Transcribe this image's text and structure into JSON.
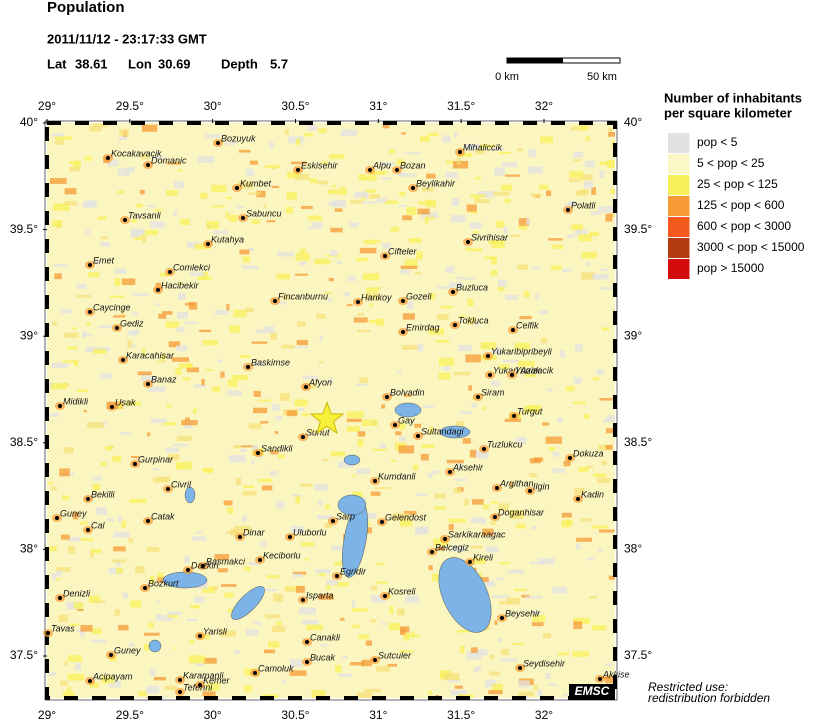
{
  "header": {
    "title": "Population",
    "datetime": "2011/11/12 - 23:17:33 GMT",
    "lat": {
      "label": "Lat",
      "value": 38.61
    },
    "lon": {
      "label": "Lon",
      "value": 30.69
    },
    "depth": {
      "label": "Depth",
      "value": 5.7
    }
  },
  "scale": {
    "labels": [
      "0 km",
      "50 km"
    ]
  },
  "axes": {
    "lon_ticks": [
      {
        "value": 29,
        "label": "29°"
      },
      {
        "value": 29.5,
        "label": "29.5°"
      },
      {
        "value": 30,
        "label": "30°"
      },
      {
        "value": 30.5,
        "label": "30.5°"
      },
      {
        "value": 31,
        "label": "31°"
      },
      {
        "value": 31.5,
        "label": "31.5°"
      },
      {
        "value": 32,
        "label": "32°"
      }
    ],
    "lat_ticks": [
      {
        "value": 40,
        "label": "40°"
      },
      {
        "value": 39.5,
        "label": "39.5°"
      },
      {
        "value": 39,
        "label": "39°"
      },
      {
        "value": 38.5,
        "label": "38.5°"
      },
      {
        "value": 38,
        "label": "38°"
      },
      {
        "value": 37.5,
        "label": "37.5°"
      }
    ]
  },
  "legend": {
    "title_lines": [
      "Number of inhabitants",
      "per square kilometer"
    ],
    "items": [
      {
        "label": "pop < 5",
        "color": "#e2e2e2"
      },
      {
        "label": "5 < pop < 25",
        "color": "#fbf7c6"
      },
      {
        "label": "25 < pop < 125",
        "color": "#f8f05a"
      },
      {
        "label": "125 < pop < 600",
        "color": "#f59a34"
      },
      {
        "label": "600 < pop < 3000",
        "color": "#f3581c"
      },
      {
        "label": "3000 < pop < 15000",
        "color": "#b53c10"
      },
      {
        "label": "pop > 15000",
        "color": "#d20b0b"
      }
    ]
  },
  "places": [
    "Bozuyuk",
    "Kocakavacik",
    "Domanic",
    "Eskisehir",
    "Alpu",
    "Bozan",
    "Mihaliccik",
    "Beylikahir",
    "Kumbet",
    "Tavsanli",
    "Sabuncu",
    "Polatli",
    "Kutahya",
    "Sivrihisar",
    "Cifteler",
    "Emet",
    "Comlekci",
    "Hacibekir",
    "Buzluca",
    "Fincanburnu",
    "Hankoy",
    "Gozeli",
    "Caycinge",
    "Gediz",
    "Tokluca",
    "Celfik",
    "Emirdag",
    "Karacahisar",
    "Baskimse",
    "Yukaribipribeyli",
    "Yukari Azizacik",
    "Yunak",
    "Banaz",
    "Afyon",
    "Bolvadin",
    "Siram",
    "Midikli",
    "Usak",
    "Turgut",
    "Gay",
    "Sultandagi",
    "Suhut",
    "Sandikli",
    "Tuzlukcu",
    "Dokuza",
    "Gurpinar",
    "Aksehir",
    "Kumdanli",
    "Civril",
    "Argithan",
    "Ilgin",
    "Bekilli",
    "Kadin",
    "Guney",
    "Catak",
    "Cal",
    "Dinar",
    "Uluborlu",
    "Sarp",
    "Gelendost",
    "Doganhisar",
    "Sarkikaraagac",
    "Basmakci",
    "Dazkiri",
    "Keciborlu",
    "Belcegiz",
    "Kireli",
    "Egridir",
    "Bozkurt",
    "Denizli",
    "Kosreli",
    "Isparta",
    "Beysehir",
    "Yarisli",
    "Canakli",
    "Tavas",
    "Guney",
    "Bucak",
    "Sutculer",
    "Seydisehir",
    "Karamanli",
    "Camoluk",
    "Acipayam",
    "Kemer",
    "Tefenni",
    "Akkise"
  ],
  "credit": "EMSC",
  "notice_lines": [
    "Restricted use:",
    "redistribution forbidden"
  ]
}
